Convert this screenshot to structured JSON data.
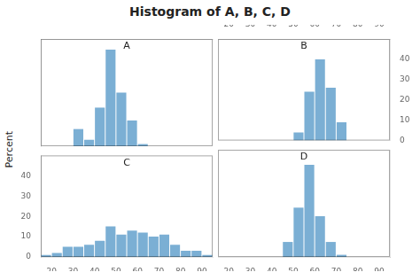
{
  "title": "Histogram of A, B, C, D",
  "ylabel": "Percent",
  "chart_data": [
    {
      "type": "histogram",
      "title": "A",
      "bins": [
        30,
        35,
        40,
        45,
        50,
        55,
        60,
        65,
        70
      ],
      "values": [
        8,
        3,
        18,
        45,
        25,
        12,
        1,
        0
      ],
      "color": "#7BAFD4",
      "xlim": [
        15,
        95
      ],
      "xticks": [
        20,
        30,
        40,
        50,
        60,
        70,
        80,
        90
      ],
      "ylim": [
        0,
        50
      ],
      "yticks": [
        0,
        10,
        20,
        30,
        40
      ],
      "grid": false,
      "tick_labels": false
    },
    {
      "type": "histogram",
      "title": "B",
      "bins": [
        50,
        55,
        60,
        65,
        70,
        75,
        80
      ],
      "values": [
        4,
        24,
        40,
        26,
        9,
        0
      ],
      "color": "#7BAFD4",
      "xlim": [
        15,
        95
      ],
      "xticks": [
        20,
        30,
        40,
        50,
        60,
        70,
        80,
        90
      ],
      "ylim": [
        0,
        50
      ],
      "yticks": [
        0,
        10,
        20,
        30,
        40
      ],
      "grid": false
    },
    {
      "type": "histogram",
      "title": "C",
      "bins": [
        15,
        20,
        25,
        30,
        35,
        40,
        45,
        50,
        55,
        60,
        65,
        70,
        75,
        80,
        85,
        90,
        95
      ],
      "values": [
        1,
        2,
        5,
        5,
        6,
        8,
        15,
        11,
        13,
        12,
        10,
        11,
        6,
        3,
        3,
        1
      ],
      "color": "#7BAFD4",
      "xlim": [
        15,
        95
      ],
      "xticks": [
        20,
        30,
        40,
        50,
        60,
        70,
        80,
        90
      ],
      "ylim": [
        0,
        50
      ],
      "yticks": [
        0,
        10,
        20,
        30,
        40
      ],
      "grid": false
    },
    {
      "type": "histogram",
      "title": "D",
      "bins": [
        45,
        50,
        55,
        60,
        65,
        70,
        75,
        80,
        85
      ],
      "values": [
        7,
        23,
        43,
        19,
        7,
        1,
        0,
        0
      ],
      "color": "#7BAFD4",
      "xlim": [
        15,
        95
      ],
      "xticks": [
        20,
        30,
        40,
        50,
        60,
        70,
        80,
        90
      ],
      "ylim": [
        0,
        50
      ],
      "yticks": [
        0,
        10,
        20,
        30,
        40
      ],
      "grid": false,
      "tick_labels": "x"
    }
  ]
}
